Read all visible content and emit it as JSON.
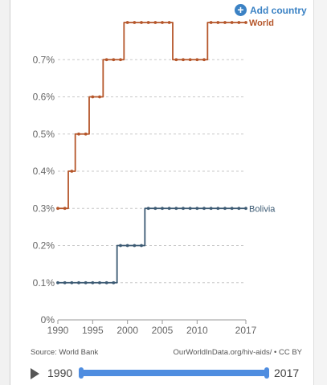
{
  "toolbar": {
    "add_country_label": "Add country",
    "plus_icon": "+"
  },
  "chart_data": {
    "type": "line",
    "xlim": [
      1990,
      2017
    ],
    "ylim": [
      0,
      0.8
    ],
    "x_ticks": [
      1990,
      1995,
      2000,
      2005,
      2010,
      2017
    ],
    "y_ticks": [
      {
        "value": 0,
        "label": "0%"
      },
      {
        "value": 0.1,
        "label": "0.1%"
      },
      {
        "value": 0.2,
        "label": "0.2%"
      },
      {
        "value": 0.3,
        "label": "0.3%"
      },
      {
        "value": 0.4,
        "label": "0.4%"
      },
      {
        "value": 0.5,
        "label": "0.5%"
      },
      {
        "value": 0.6,
        "label": "0.6%"
      },
      {
        "value": 0.7,
        "label": "0.7%"
      }
    ],
    "grid": "horizontal dashed",
    "series": [
      {
        "name": "World",
        "color": "#b5562a",
        "x": [
          1990,
          1991,
          1992,
          1993,
          1994,
          1995,
          1996,
          1997,
          1998,
          1999,
          2000,
          2001,
          2002,
          2003,
          2004,
          2005,
          2006,
          2007,
          2008,
          2009,
          2010,
          2011,
          2012,
          2013,
          2014,
          2015,
          2016,
          2017
        ],
        "values": [
          0.3,
          0.3,
          0.4,
          0.5,
          0.5,
          0.6,
          0.6,
          0.7,
          0.7,
          0.7,
          0.8,
          0.8,
          0.8,
          0.8,
          0.8,
          0.8,
          0.8,
          0.7,
          0.7,
          0.7,
          0.7,
          0.7,
          0.8,
          0.8,
          0.8,
          0.8,
          0.8,
          0.8
        ]
      },
      {
        "name": "Bolivia",
        "color": "#3c5a73",
        "x": [
          1990,
          1991,
          1992,
          1993,
          1994,
          1995,
          1996,
          1997,
          1998,
          1999,
          2000,
          2001,
          2002,
          2003,
          2004,
          2005,
          2006,
          2007,
          2008,
          2009,
          2010,
          2011,
          2012,
          2013,
          2014,
          2015,
          2016,
          2017
        ],
        "values": [
          0.1,
          0.1,
          0.1,
          0.1,
          0.1,
          0.1,
          0.1,
          0.1,
          0.1,
          0.2,
          0.2,
          0.2,
          0.2,
          0.3,
          0.3,
          0.3,
          0.3,
          0.3,
          0.3,
          0.3,
          0.3,
          0.3,
          0.3,
          0.3,
          0.3,
          0.3,
          0.3,
          0.3
        ]
      }
    ]
  },
  "footer": {
    "source": "Source: World Bank",
    "license": "OurWorldInData.org/hiv-aids/ • CC BY"
  },
  "timeline": {
    "start_year": "1990",
    "end_year": "2017",
    "accent": "#4f8de0"
  }
}
